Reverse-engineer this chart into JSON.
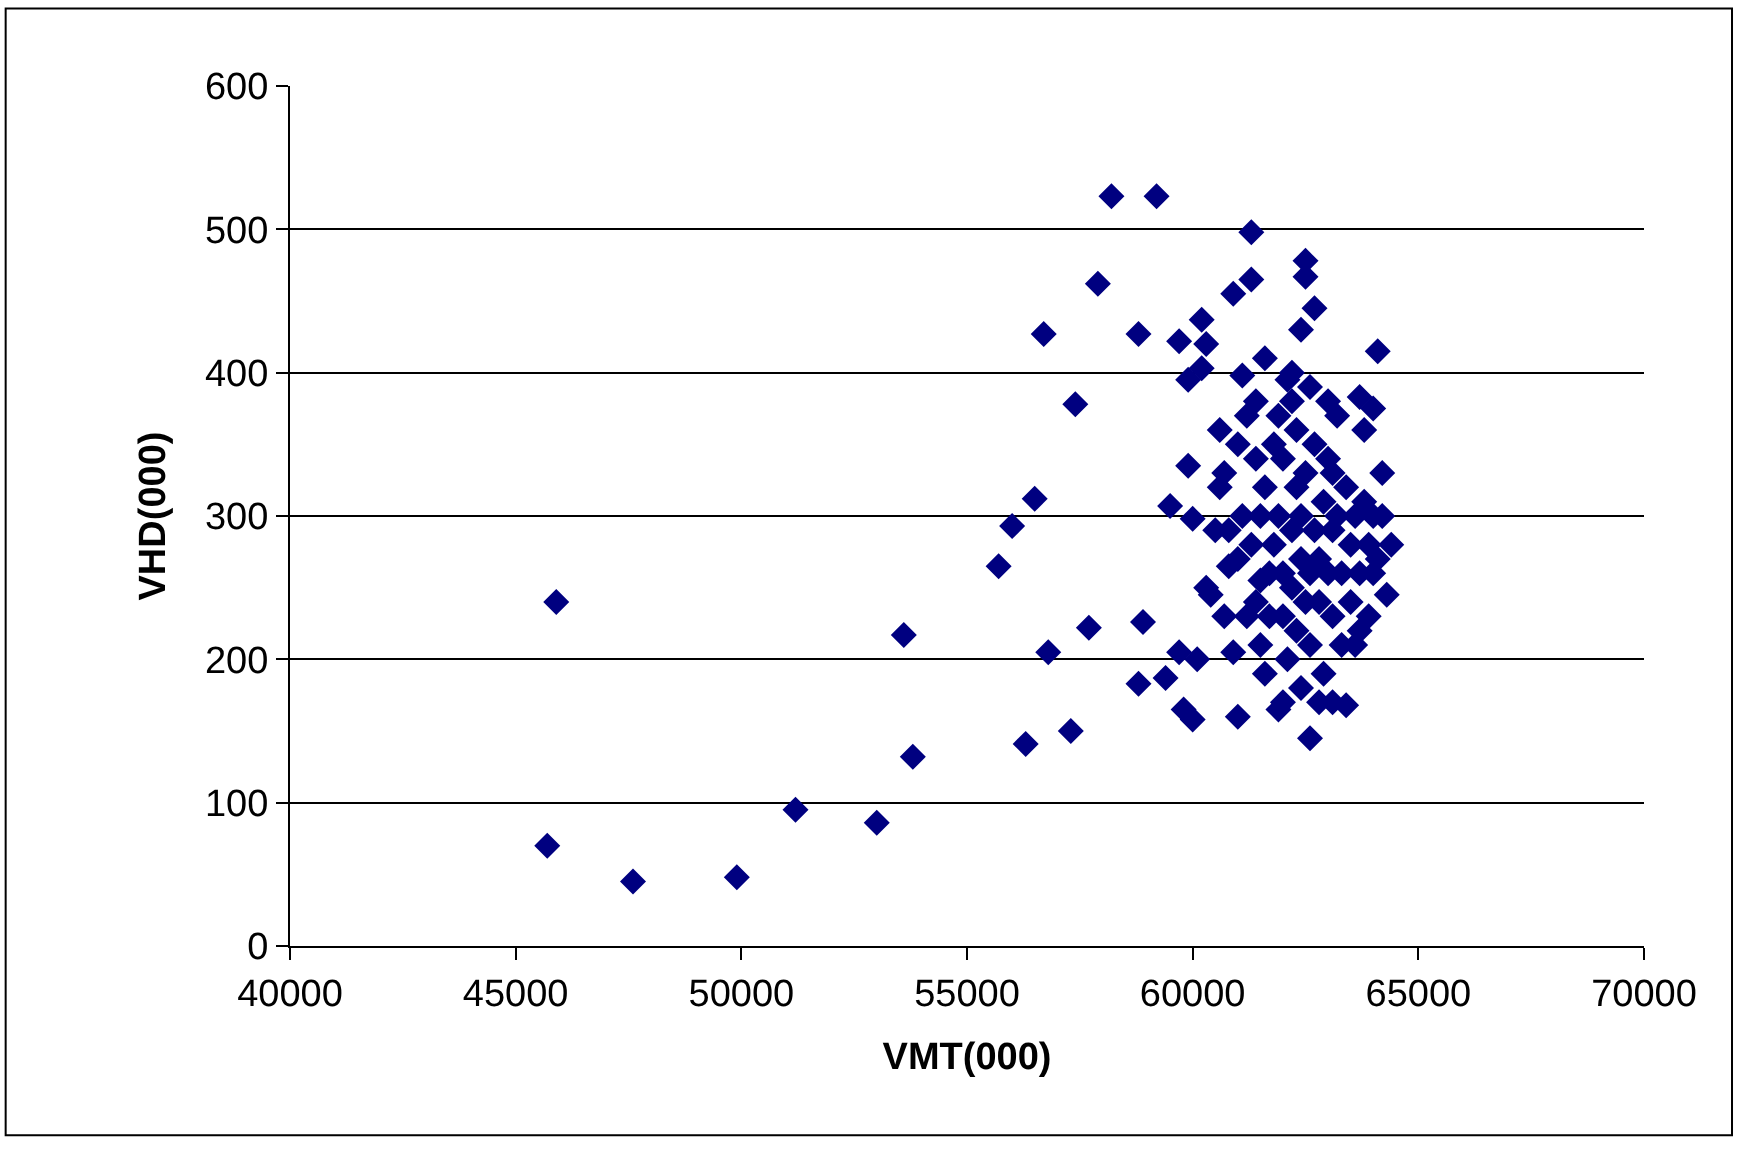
{
  "chart_data": {
    "type": "scatter",
    "xlabel": "VMT(000)",
    "ylabel": "VHD(000)",
    "xlim": [
      40000,
      70000
    ],
    "xticks": [
      40000,
      45000,
      50000,
      55000,
      60000,
      65000,
      70000
    ],
    "ylim": [
      0,
      600
    ],
    "yticks": [
      0,
      100,
      200,
      300,
      400,
      500,
      600
    ],
    "grid": "y",
    "marker": "diamond",
    "series": [
      {
        "color": "#000080",
        "x": [
          45700,
          45900,
          47600,
          49900,
          51200,
          53000,
          53600,
          53800,
          55700,
          56000,
          56300,
          56500,
          56700,
          56800,
          57300,
          57400,
          57700,
          57900,
          58200,
          58800,
          58800,
          58900,
          59200,
          59400,
          59500,
          59700,
          59700,
          59800,
          59900,
          60000,
          59900,
          60000,
          60100,
          60200,
          60200,
          60300,
          60400,
          60500,
          60600,
          60700,
          60800,
          60900,
          60900,
          61000,
          61100,
          61200,
          61300,
          61300,
          61400,
          61400,
          61500,
          61600,
          61600,
          61700,
          61800,
          61900,
          62000,
          62100,
          62200,
          62300,
          62400,
          62500,
          62500,
          62600,
          62700,
          62800,
          63000,
          63100,
          63400,
          63700,
          63800,
          64100,
          64000,
          64200,
          64400,
          64300,
          60300,
          60600,
          60800,
          61000,
          61000,
          61200,
          61300,
          61500,
          61600,
          61700,
          61800,
          61900,
          62000,
          62000,
          62100,
          62200,
          62200,
          62300,
          62300,
          62400,
          62400,
          62500,
          62500,
          62600,
          62600,
          62700,
          62700,
          62800,
          62800,
          62900,
          62900,
          63000,
          63000,
          63100,
          63100,
          63200,
          63300,
          63300,
          63400,
          63500,
          63500,
          63600,
          63700,
          63700,
          63800,
          63900,
          64000,
          64000,
          63600,
          61900,
          62200,
          61400,
          62600,
          63200,
          63100,
          62400,
          62000,
          61100,
          60700,
          61500,
          63900,
          64200,
          64100
        ],
        "values": [
          70,
          240,
          45,
          48,
          95,
          86,
          217,
          132,
          265,
          293,
          141,
          312,
          427,
          205,
          150,
          378,
          222,
          462,
          523,
          427,
          183,
          226,
          523,
          187,
          307,
          422,
          205,
          165,
          395,
          158,
          335,
          298,
          200,
          403,
          437,
          420,
          245,
          290,
          360,
          330,
          265,
          455,
          205,
          160,
          398,
          370,
          498,
          465,
          340,
          240,
          300,
          410,
          190,
          260,
          350,
          165,
          230,
          395,
          380,
          320,
          430,
          478,
          467,
          145,
          445,
          170,
          380,
          170,
          168,
          383,
          360,
          415,
          375,
          330,
          280,
          245,
          250,
          320,
          290,
          270,
          350,
          230,
          280,
          210,
          320,
          230,
          280,
          300,
          260,
          340,
          200,
          290,
          250,
          220,
          360,
          270,
          300,
          240,
          330,
          260,
          210,
          290,
          350,
          240,
          270,
          310,
          190,
          260,
          340,
          290,
          230,
          300,
          260,
          210,
          320,
          280,
          240,
          300,
          260,
          220,
          310,
          280,
          260,
          300,
          210,
          370,
          400,
          380,
          390,
          370,
          330,
          180,
          170,
          300,
          230,
          255,
          230,
          300,
          270
        ]
      }
    ]
  }
}
